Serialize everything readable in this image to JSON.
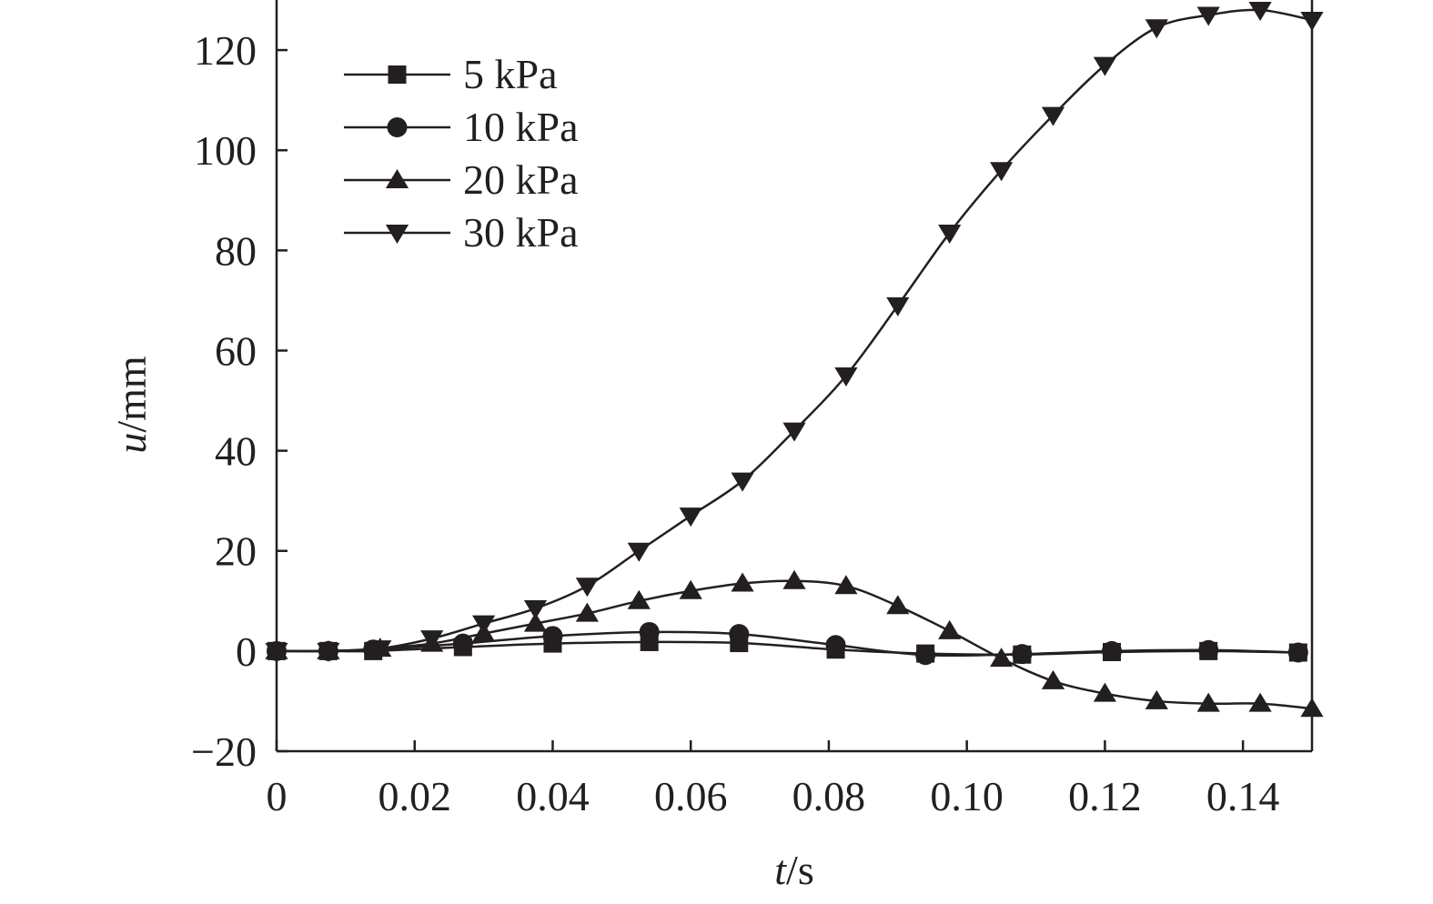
{
  "chart_data": {
    "type": "line",
    "title": "",
    "xlabel_var": "t",
    "xlabel_unit": "/s",
    "ylabel_var": "u",
    "ylabel_unit": "/mm",
    "xlim": [
      0,
      0.15
    ],
    "ylim": [
      -20,
      130
    ],
    "x_ticks": [
      0,
      0.02,
      0.04,
      0.06,
      0.08,
      0.1,
      0.12,
      0.14
    ],
    "x_tick_labels": [
      "0",
      "0.02",
      "0.04",
      "0.06",
      "0.08",
      "0.10",
      "0.12",
      "0.14"
    ],
    "y_ticks": [
      -20,
      0,
      20,
      40,
      60,
      80,
      100,
      120
    ],
    "y_tick_labels": [
      "−20",
      "0",
      "20",
      "40",
      "60",
      "80",
      "100",
      "120"
    ],
    "grid": false,
    "legend_position": "top-left",
    "series": [
      {
        "name": "5 kPa",
        "marker": "square",
        "x": [
          0,
          0.0075,
          0.014,
          0.027,
          0.04,
          0.054,
          0.067,
          0.081,
          0.094,
          0.108,
          0.121,
          0.135,
          0.148
        ],
        "y": [
          0,
          0,
          0,
          0.8,
          1.5,
          1.8,
          1.6,
          0.3,
          -0.5,
          -0.7,
          -0.2,
          0,
          -0.3
        ]
      },
      {
        "name": "10 kPa",
        "marker": "circle",
        "x": [
          0,
          0.0075,
          0.014,
          0.027,
          0.04,
          0.054,
          0.067,
          0.081,
          0.094,
          0.108,
          0.121,
          0.135,
          0.148
        ],
        "y": [
          0,
          0,
          0.3,
          1.5,
          3.0,
          3.8,
          3.4,
          1.2,
          -0.8,
          -0.6,
          0,
          0.2,
          -0.3
        ]
      },
      {
        "name": "20 kPa",
        "marker": "triangle-up",
        "x": [
          0,
          0.0075,
          0.015,
          0.0225,
          0.03,
          0.0375,
          0.045,
          0.0525,
          0.06,
          0.0675,
          0.075,
          0.0825,
          0.09,
          0.0975,
          0.105,
          0.1125,
          0.12,
          0.1275,
          0.135,
          0.1425,
          0.15
        ],
        "y": [
          0,
          0,
          0.5,
          1.5,
          3.5,
          5.5,
          7.5,
          10,
          12,
          13.5,
          14,
          13,
          9,
          4,
          -1.5,
          -6,
          -8.5,
          -10,
          -10.5,
          -10.5,
          -11.5
        ]
      },
      {
        "name": "30 kPa",
        "marker": "triangle-down",
        "x": [
          0,
          0.0075,
          0.015,
          0.0225,
          0.03,
          0.0375,
          0.045,
          0.0525,
          0.06,
          0.0675,
          0.075,
          0.0825,
          0.09,
          0.0975,
          0.105,
          0.1125,
          0.12,
          0.1275,
          0.135,
          0.1425,
          0.15
        ],
        "y": [
          0,
          0,
          0.5,
          2.5,
          5.5,
          8.5,
          13,
          20,
          27,
          34,
          44,
          55,
          69,
          83.5,
          96,
          107,
          117,
          124.5,
          127,
          128,
          126
        ]
      }
    ]
  }
}
